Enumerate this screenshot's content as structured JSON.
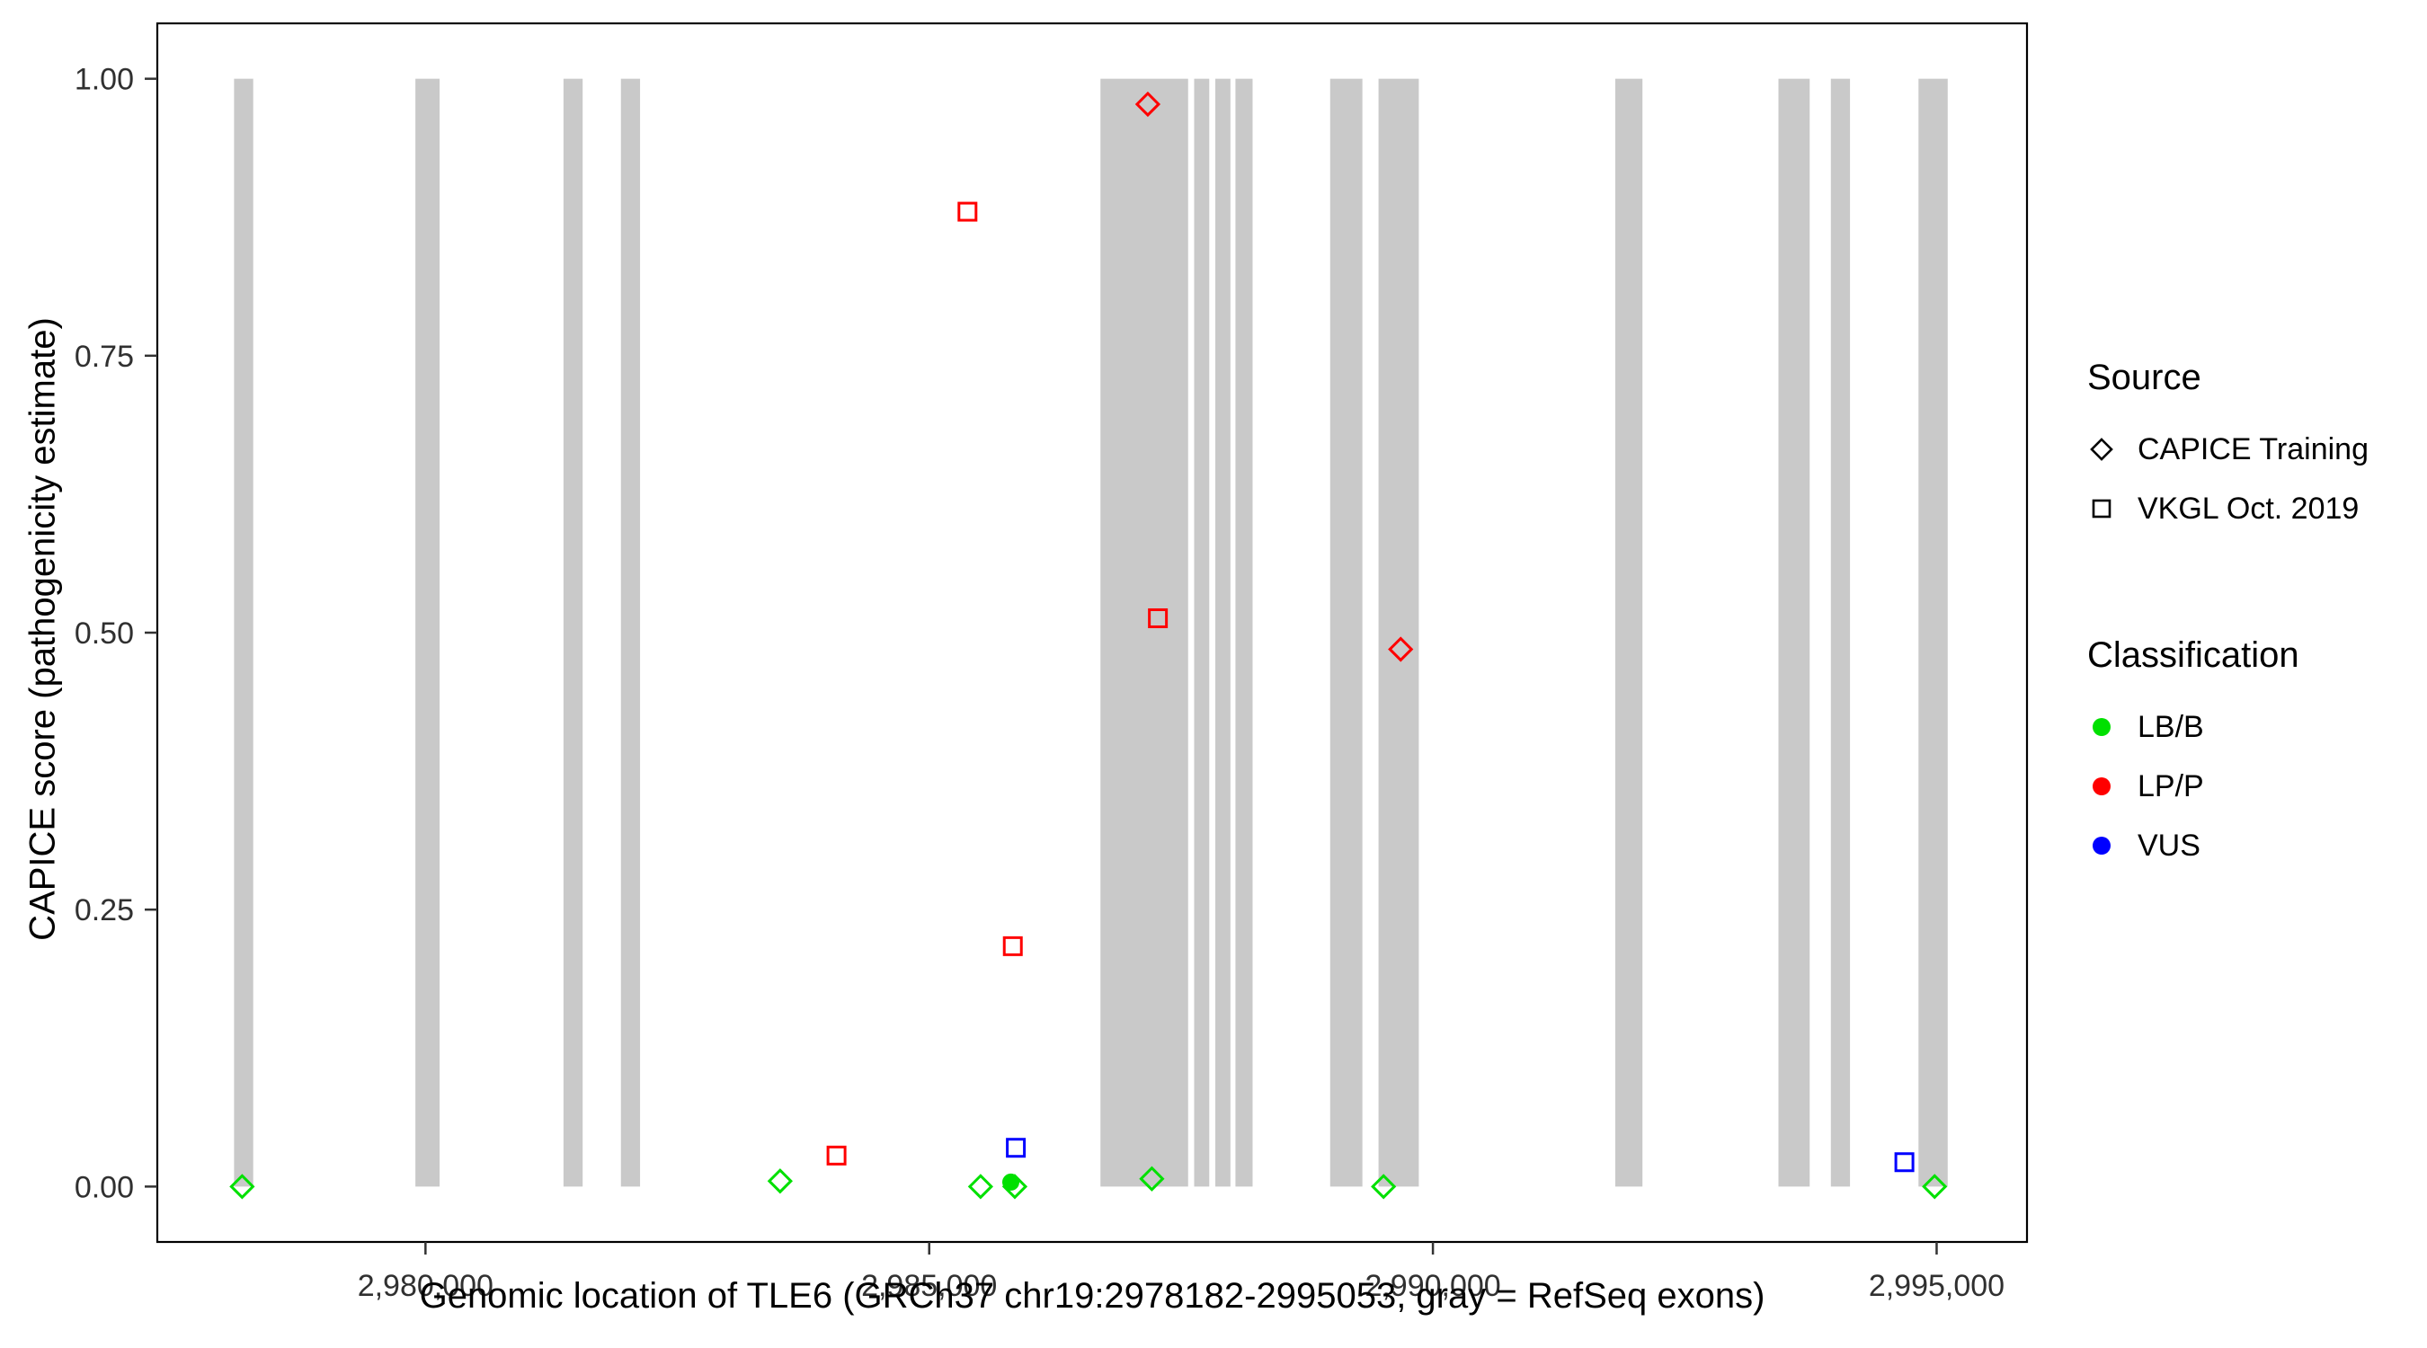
{
  "chart_data": {
    "type": "scatter",
    "title": "",
    "xlabel": "Genomic location of TLE6 (GRCh37 chr19:2978182-2995053, gray = RefSeq exons)",
    "ylabel": "CAPICE score (pathogenicity estimate)",
    "x_domain": [
      2977338,
      2995897
    ],
    "y_domain": [
      -0.05,
      1.05
    ],
    "grid": "off",
    "legend_position": "right",
    "x_ticks": [
      {
        "value": 2980000,
        "label": "2,980,000"
      },
      {
        "value": 2985000,
        "label": "2,985,000"
      },
      {
        "value": 2990000,
        "label": "2,990,000"
      },
      {
        "value": 2995000,
        "label": "2,995,000"
      }
    ],
    "y_ticks": [
      {
        "value": 0.0,
        "label": "0.00"
      },
      {
        "value": 0.25,
        "label": "0.25"
      },
      {
        "value": 0.5,
        "label": "0.50"
      },
      {
        "value": 0.75,
        "label": "0.75"
      },
      {
        "value": 1.0,
        "label": "1.00"
      }
    ],
    "exon_color": "#C9C9C9",
    "class_colors": {
      "LB/B": "#00E000",
      "LP/P": "#FF0000",
      "VUS": "#0000FF"
    },
    "exons": [
      [
        2978100,
        2978290
      ],
      [
        2979900,
        2980140
      ],
      [
        2981370,
        2981560
      ],
      [
        2981940,
        2982130
      ],
      [
        2986700,
        2987570
      ],
      [
        2987630,
        2987780
      ],
      [
        2987840,
        2987990
      ],
      [
        2988040,
        2988210
      ],
      [
        2988980,
        2989300
      ],
      [
        2989460,
        2989860
      ],
      [
        2991810,
        2992080
      ],
      [
        2993430,
        2993740
      ],
      [
        2993950,
        2994140
      ],
      [
        2994820,
        2995110
      ]
    ],
    "points": [
      {
        "x": 2978180,
        "y": 0.0,
        "shape": "diamond",
        "classification": "LB/B"
      },
      {
        "x": 2983520,
        "y": 0.005,
        "shape": "diamond",
        "classification": "LB/B"
      },
      {
        "x": 2984080,
        "y": 0.028,
        "shape": "square",
        "classification": "LP/P"
      },
      {
        "x": 2985380,
        "y": 0.88,
        "shape": "square",
        "classification": "LP/P"
      },
      {
        "x": 2985510,
        "y": 0.0,
        "shape": "diamond",
        "classification": "LB/B"
      },
      {
        "x": 2985830,
        "y": 0.217,
        "shape": "square",
        "classification": "LP/P"
      },
      {
        "x": 2985860,
        "y": 0.035,
        "shape": "square",
        "classification": "VUS"
      },
      {
        "x": 2985810,
        "y": 0.004,
        "shape": "circle",
        "classification": "LB/B"
      },
      {
        "x": 2985850,
        "y": 0.0,
        "shape": "diamond",
        "classification": "LB/B"
      },
      {
        "x": 2987170,
        "y": 0.977,
        "shape": "diamond",
        "classification": "LP/P"
      },
      {
        "x": 2987270,
        "y": 0.513,
        "shape": "square",
        "classification": "LP/P"
      },
      {
        "x": 2987210,
        "y": 0.007,
        "shape": "diamond",
        "classification": "LB/B"
      },
      {
        "x": 2989510,
        "y": 0.0,
        "shape": "diamond",
        "classification": "LB/B"
      },
      {
        "x": 2989680,
        "y": 0.485,
        "shape": "diamond",
        "classification": "LP/P"
      },
      {
        "x": 2994680,
        "y": 0.022,
        "shape": "square",
        "classification": "VUS"
      },
      {
        "x": 2994980,
        "y": 0.0,
        "shape": "diamond",
        "classification": "LB/B"
      }
    ]
  },
  "legend": {
    "source": {
      "title": "Source",
      "items": [
        {
          "label": "CAPICE Training",
          "shape": "diamond"
        },
        {
          "label": "VKGL Oct. 2019",
          "shape": "square"
        }
      ]
    },
    "classification": {
      "title": "Classification",
      "items": [
        {
          "label": "LB/B",
          "color": "#00E000"
        },
        {
          "label": "LP/P",
          "color": "#FF0000"
        },
        {
          "label": "VUS",
          "color": "#0000FF"
        }
      ]
    }
  }
}
